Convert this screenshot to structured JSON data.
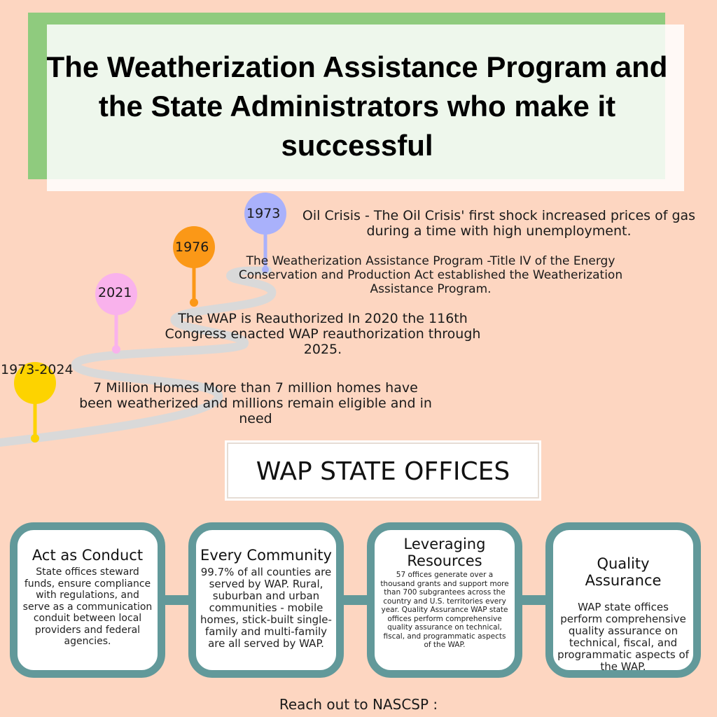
{
  "title": "The Weatherization Assistance Program and the State Administrators who make it successful",
  "timeline": [
    {
      "year": "1973",
      "text": "Oil Crisis - The Oil Crisis' first shock increased prices of gas during a time with high unemployment.",
      "color": "#a9b1fb"
    },
    {
      "year": "1976",
      "text": "The Weatherization Assistance Program -Title IV of the Energy Conservation and Production Act established the Weatherization Assistance Program.",
      "color": "#fb9817"
    },
    {
      "year": "2021",
      "text": "The WAP is Reauthorized In 2020 the 116th Congress enacted WAP reauthorization through 2025.",
      "color": "#f9b2ec"
    },
    {
      "year": "1973-2024",
      "text": "7 Million Homes More than 7 million homes have been weatherized and millions remain eligible and in need",
      "color": "#fdd300"
    }
  ],
  "offices_heading": "WAP STATE OFFICES",
  "cards": [
    {
      "title": "Act as Conduct",
      "body": "State offices steward funds, ensure compliance with regulations, and serve as a communication conduit between local providers and federal agencies."
    },
    {
      "title": "Every Community",
      "body": "99.7% of all counties are served by WAP. Rural, suburban and urban communities - mobile homes, stick-built single-family and multi-family are all served by WAP."
    },
    {
      "title": "Leveraging Resources",
      "body": "57 offices generate over a thousand grants and support more than 700 subgrantees across the country and U.S. territories every year. Quality Assurance WAP state offices perform comprehensive quality assurance on technical, fiscal, and programmatic aspects of the WAP."
    },
    {
      "title": "Quality Assurance",
      "body": "WAP state offices perform comprehensive quality assurance on technical, fiscal, and programmatic aspects of the WAP."
    }
  ],
  "footer": "Reach out to NASCSP :",
  "colors": {
    "background": "#fdd6c1",
    "title_accent": "#8fcb7e",
    "card_border": "#62999a",
    "road": "#d9d9d9"
  }
}
